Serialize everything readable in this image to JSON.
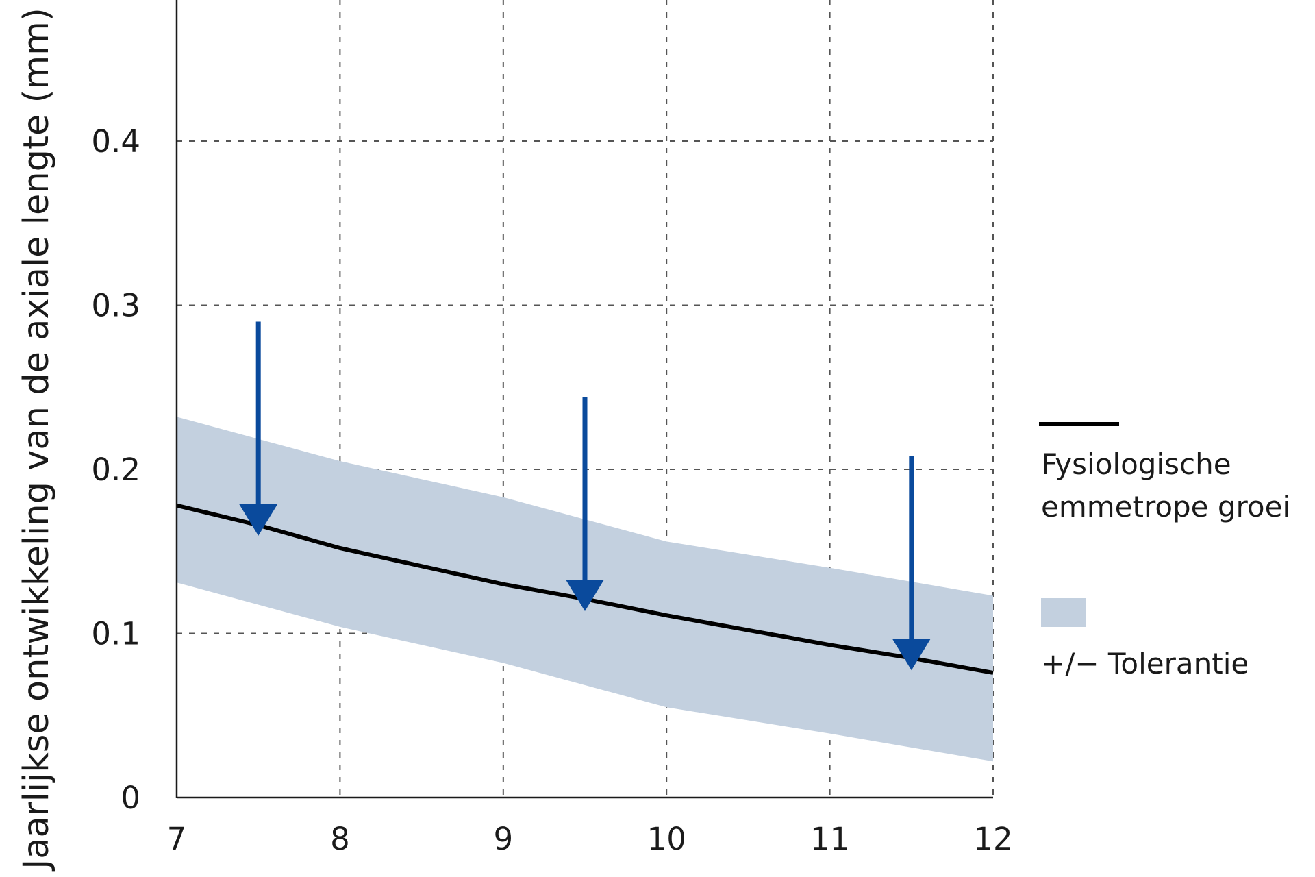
{
  "chart_data": {
    "type": "line",
    "title": "",
    "xlabel": "",
    "ylabel": "Jaarlijkse ontwikkeling van de axiale lengte (mm)",
    "x_ticks": [
      "7",
      "8",
      "9",
      "10",
      "11",
      "12"
    ],
    "y_ticks": [
      "0",
      "0.1",
      "0.2",
      "0.3",
      "0.4"
    ],
    "xlim": [
      7,
      12
    ],
    "ylim": [
      0,
      0.5
    ],
    "grid": true,
    "legend_position": "right",
    "series": [
      {
        "name": "Fysiologische emmetrope groei",
        "color": "#000000",
        "x": [
          7,
          7.5,
          8,
          8.5,
          9,
          9.5,
          10,
          10.5,
          11,
          11.5,
          12
        ],
        "y": [
          0.178,
          0.166,
          0.152,
          0.141,
          0.13,
          0.121,
          0.111,
          0.102,
          0.093,
          0.085,
          0.076
        ]
      }
    ],
    "band": {
      "name": "+/− Tolerantie",
      "color": "#c3d0df",
      "x": [
        7,
        8,
        9,
        10,
        11,
        12
      ],
      "upper": [
        0.232,
        0.205,
        0.183,
        0.156,
        0.14,
        0.123
      ],
      "lower": [
        0.131,
        0.104,
        0.082,
        0.055,
        0.039,
        0.022
      ]
    },
    "annotations": [
      {
        "type": "arrow-down",
        "x": 7.5,
        "y_start": 0.29,
        "y_end": 0.17,
        "color": "#0a4a9c"
      },
      {
        "type": "arrow-down",
        "x": 9.5,
        "y_start": 0.244,
        "y_end": 0.124,
        "color": "#0a4a9c"
      },
      {
        "type": "arrow-down",
        "x": 11.5,
        "y_start": 0.208,
        "y_end": 0.088,
        "color": "#0a4a9c"
      }
    ]
  },
  "legend": {
    "line_label_1": "Fysiologische",
    "line_label_2": "emmetrope groei",
    "band_label": "+/− Tolerantie"
  }
}
